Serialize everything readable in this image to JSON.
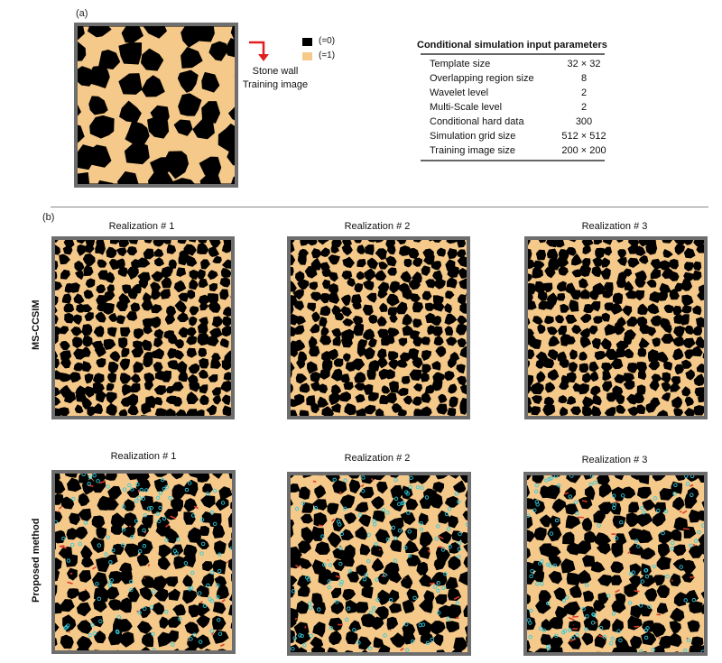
{
  "panel_a": {
    "label": "(a)",
    "arrow_label_line1": "Stone wall",
    "arrow_label_line2": "Training image",
    "legend": [
      {
        "text": "(=0)",
        "color": "#000000"
      },
      {
        "text": "(=1)",
        "color": "#f5c98a"
      }
    ],
    "table": {
      "title": "Conditional simulation input parameters",
      "rows": [
        {
          "name": "Template size",
          "value": "32 × 32"
        },
        {
          "name": "Overlapping region size",
          "value": "8"
        },
        {
          "name": "Wavelet level",
          "value": "2"
        },
        {
          "name": "Multi-Scale level",
          "value": "2"
        },
        {
          "name": "Conditional hard data",
          "value": "300"
        },
        {
          "name": "Simulation grid size",
          "value": "512 × 512"
        },
        {
          "name": "Training image size",
          "value": "200 × 200"
        }
      ]
    }
  },
  "panel_b": {
    "label": "(b)",
    "rows": [
      {
        "label": "MS-CCSIM",
        "realizations": [
          "Realization # 1",
          "Realization # 2",
          "Realization # 3"
        ]
      },
      {
        "label": "Proposed method",
        "realizations": [
          "Realization # 1",
          "Realization # 2",
          "Realization # 3"
        ]
      }
    ]
  },
  "colors": {
    "stone": "#000000",
    "mortar": "#f5c98a",
    "frame": "#6e6e6e",
    "arrow": "#e02020",
    "hard_data": "#2ecbe0",
    "error_red": "#e03a2a"
  }
}
